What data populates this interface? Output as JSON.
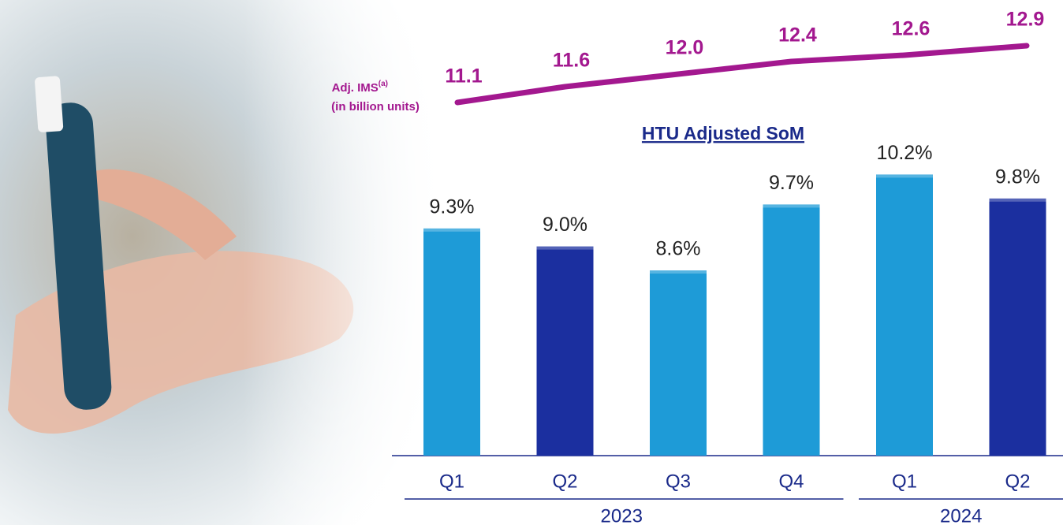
{
  "chart_data": [
    {
      "type": "line",
      "label": "Adj. IMS",
      "label_note": "(a)",
      "label_units": "(in billion units)",
      "values": [
        11.1,
        11.6,
        12.0,
        12.4,
        12.6,
        12.9
      ],
      "value_labels": [
        "11.1",
        "11.6",
        "12.0",
        "12.4",
        "12.6",
        "12.9"
      ],
      "color": "#a3188f"
    },
    {
      "type": "bar",
      "title": "HTU Adjusted SoM",
      "groups": [
        {
          "name": "2023",
          "categories": [
            "Q1",
            "Q2",
            "Q3",
            "Q4"
          ]
        },
        {
          "name": "2024",
          "categories": [
            "Q1",
            "Q2"
          ]
        }
      ],
      "values": [
        9.3,
        9.0,
        8.6,
        9.7,
        10.2,
        9.8
      ],
      "value_labels": [
        "9.3%",
        "9.0%",
        "8.6%",
        "9.7%",
        "10.2%",
        "9.8%"
      ],
      "colors": [
        "#1e9bd7",
        "#1b2f9f",
        "#1e9bd7",
        "#1e9bd7",
        "#1e9bd7",
        "#1b2f9f"
      ]
    }
  ]
}
